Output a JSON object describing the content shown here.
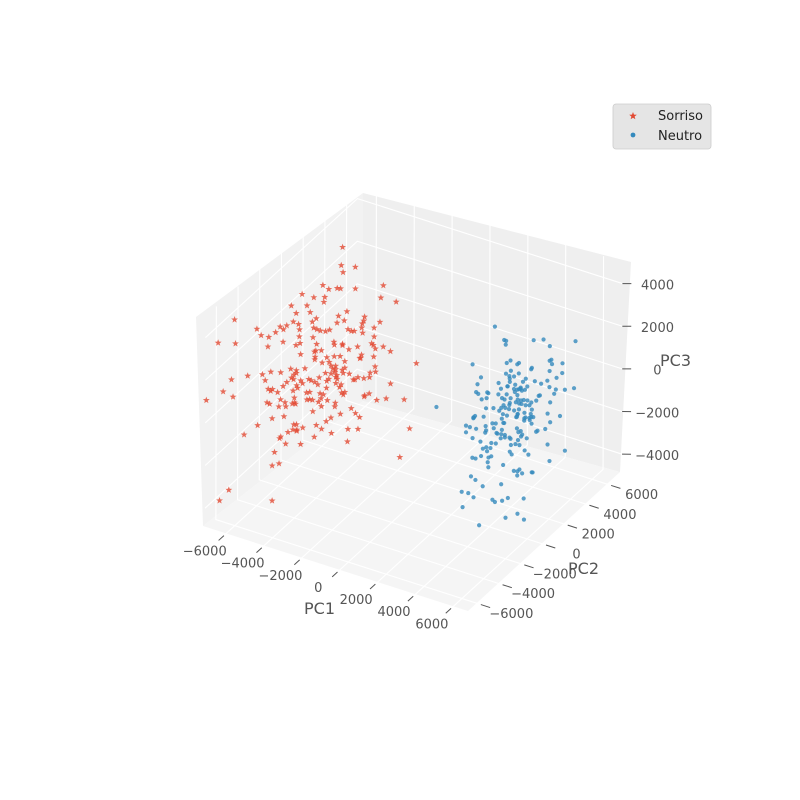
{
  "chart_data": {
    "type": "scatter",
    "projection": "3d",
    "xlabel": "PC1",
    "ylabel": "PC2",
    "zlabel": "PC3",
    "xticks": [
      -6000,
      -4000,
      -2000,
      0,
      2000,
      4000,
      6000
    ],
    "yticks": [
      -6000,
      -4000,
      -2000,
      0,
      2000,
      4000,
      6000
    ],
    "zticks": [
      -4000,
      -2000,
      0,
      2000,
      4000
    ],
    "xlim": [
      -7000,
      7000
    ],
    "ylim": [
      -7000,
      7000
    ],
    "zlim": [
      -5000,
      5000
    ],
    "grid": true,
    "legend": {
      "placement": "top-right"
    },
    "series": [
      {
        "name": "Sorriso",
        "marker": "star",
        "color": "#E24A33",
        "cluster": "PC1 < 0",
        "count": 220
      },
      {
        "name": "Neutro",
        "marker": "circle",
        "color": "#348ABD",
        "cluster": "PC1 > 0",
        "count": 200
      }
    ]
  }
}
